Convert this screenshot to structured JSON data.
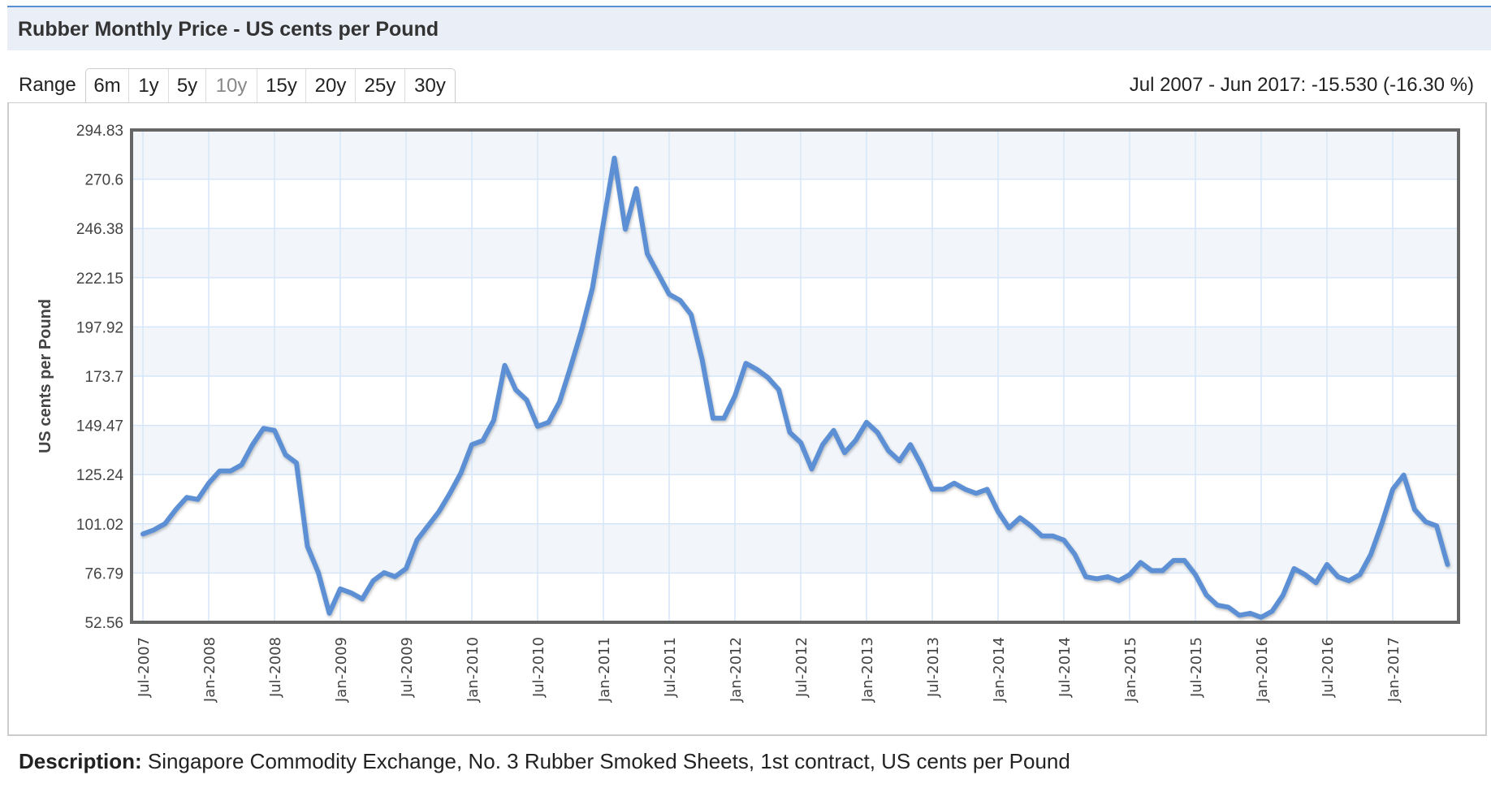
{
  "header": {
    "title": "Rubber Monthly Price - US cents per Pound"
  },
  "range": {
    "label": "Range",
    "buttons": [
      {
        "label": "6m",
        "active": false
      },
      {
        "label": "1y",
        "active": false
      },
      {
        "label": "5y",
        "active": false
      },
      {
        "label": "10y",
        "active": true
      },
      {
        "label": "15y",
        "active": false
      },
      {
        "label": "20y",
        "active": false
      },
      {
        "label": "25y",
        "active": false
      },
      {
        "label": "30y",
        "active": false
      }
    ],
    "summary": "Jul 2007 - Jun 2017: -15.530 (-16.30 %)"
  },
  "description": {
    "label": "Description:",
    "text": " Singapore Commodity Exchange, No. 3 Rubber Smoked Sheets, 1st contract, US cents per Pound"
  },
  "colors": {
    "line": "#5b8fd3",
    "band": "#f2f6fa",
    "grid": "#d6e6f8",
    "border": "#666666",
    "header_bg": "#e9eef7"
  },
  "chart_data": {
    "type": "line",
    "title": "Rubber Monthly Price - US cents per Pound",
    "xlabel": "",
    "ylabel": "US cents per Pound",
    "ylim": [
      52.56,
      294.83
    ],
    "yticks": [
      "52.56",
      "76.79",
      "101.02",
      "125.24",
      "149.47",
      "173.7",
      "197.92",
      "222.15",
      "246.38",
      "270.6",
      "294.83"
    ],
    "xticks": [
      "Jul-2007",
      "Jan-2008",
      "Jul-2008",
      "Jan-2009",
      "Jul-2009",
      "Jan-2010",
      "Jul-2010",
      "Jan-2011",
      "Jul-2011",
      "Jan-2012",
      "Jul-2012",
      "Jan-2013",
      "Jul-2013",
      "Jan-2014",
      "Jul-2014",
      "Jan-2015",
      "Jul-2015",
      "Jan-2016",
      "Jul-2016",
      "Jan-2017"
    ],
    "x_start": "Jul-2007",
    "x_end": "Jun-2017",
    "grid": true,
    "series": [
      {
        "name": "Rubber",
        "values": [
          96,
          98,
          101,
          108,
          114,
          113,
          121,
          127,
          127,
          130,
          140,
          148,
          147,
          135,
          131,
          90,
          77,
          57,
          69,
          67,
          64,
          73,
          77,
          75,
          79,
          93,
          100,
          107,
          116,
          126,
          140,
          142,
          152,
          179,
          167,
          162,
          149,
          151,
          161,
          178,
          196,
          217,
          249,
          281,
          246,
          266,
          234,
          224,
          214,
          211,
          204,
          182,
          153,
          153,
          164,
          180,
          177,
          173,
          167,
          146,
          141,
          128,
          140,
          147,
          136,
          142,
          151,
          146,
          137,
          132,
          140,
          130,
          118,
          118,
          121,
          118,
          116,
          118,
          107,
          99,
          104,
          100,
          95,
          95,
          93,
          86,
          75,
          74,
          75,
          73,
          76,
          82,
          78,
          78,
          83,
          83,
          76,
          66,
          61,
          60,
          56,
          57,
          55,
          58,
          66,
          79,
          76,
          72,
          81,
          75,
          73,
          76,
          86,
          101,
          118,
          125,
          108,
          102,
          100,
          81
        ]
      }
    ]
  }
}
